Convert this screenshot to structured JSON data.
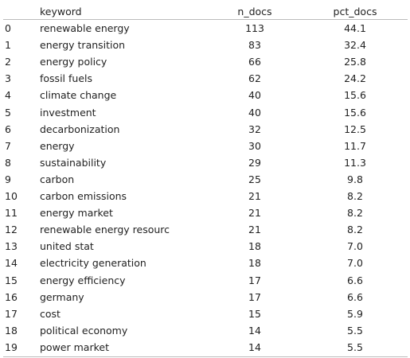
{
  "table": {
    "columns": [
      "keyword",
      "n_docs",
      "pct_docs"
    ],
    "rows": [
      [
        "0",
        "renewable energy",
        "113",
        "44.1"
      ],
      [
        "1",
        "energy transition",
        "83",
        "32.4"
      ],
      [
        "2",
        "energy policy",
        "66",
        "25.8"
      ],
      [
        "3",
        "fossil fuels",
        "62",
        "24.2"
      ],
      [
        "4",
        "climate change",
        "40",
        "15.6"
      ],
      [
        "5",
        "investment",
        "40",
        "15.6"
      ],
      [
        "6",
        "decarbonization",
        "32",
        "12.5"
      ],
      [
        "7",
        "energy",
        "30",
        "11.7"
      ],
      [
        "8",
        "sustainability",
        "29",
        "11.3"
      ],
      [
        "9",
        "carbon",
        "25",
        "9.8"
      ],
      [
        "10",
        "carbon emissions",
        "21",
        "8.2"
      ],
      [
        "11",
        "energy market",
        "21",
        "8.2"
      ],
      [
        "12",
        "renewable energy resourc",
        "21",
        "8.2"
      ],
      [
        "13",
        "united stat",
        "18",
        "7.0"
      ],
      [
        "14",
        "electricity generation",
        "18",
        "7.0"
      ],
      [
        "15",
        "energy efficiency",
        "17",
        "6.6"
      ],
      [
        "16",
        "germany",
        "17",
        "6.6"
      ],
      [
        "17",
        "cost",
        "15",
        "5.9"
      ],
      [
        "18",
        "political economy",
        "14",
        "5.5"
      ],
      [
        "19",
        "power market",
        "14",
        "5.5"
      ]
    ]
  }
}
